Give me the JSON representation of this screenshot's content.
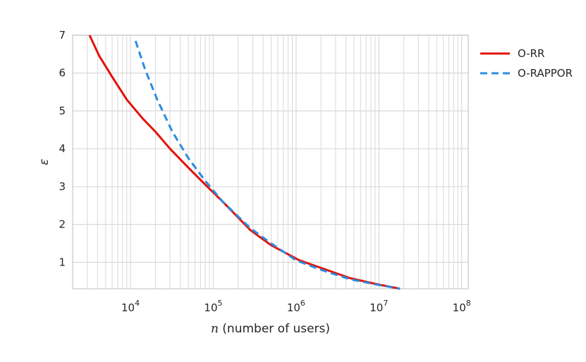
{
  "chart_data": {
    "type": "line",
    "xscale": "log",
    "xlim": [
      2000,
      120000000
    ],
    "ylim": [
      0.3,
      7
    ],
    "x_ticks": [
      10000,
      100000,
      1000000,
      10000000,
      100000000
    ],
    "x_tick_labels": [
      {
        "base": "10",
        "exp": "4"
      },
      {
        "base": "10",
        "exp": "5"
      },
      {
        "base": "10",
        "exp": "6"
      },
      {
        "base": "10",
        "exp": "7"
      },
      {
        "base": "10",
        "exp": "8"
      }
    ],
    "y_ticks": [
      1,
      2,
      3,
      4,
      5,
      6,
      7
    ],
    "y_tick_labels": [
      "1",
      "2",
      "3",
      "4",
      "5",
      "6",
      "7"
    ],
    "xlabel_var": "n",
    "xlabel_text": " (number of users)",
    "ylabel": "ε",
    "grid": true,
    "legend_position": "outside-right-top",
    "series": [
      {
        "name": "O-RR",
        "color": "#e3120b",
        "dash": "solid",
        "x": [
          3200,
          4200,
          6000,
          9000,
          14000,
          20000,
          30000,
          50000,
          80000,
          130000,
          280000,
          500000,
          1100000,
          2000000,
          4500000,
          9000000,
          18000000
        ],
        "y": [
          7.0,
          6.45,
          5.9,
          5.3,
          4.8,
          4.45,
          4.0,
          3.5,
          3.05,
          2.6,
          1.85,
          1.45,
          1.05,
          0.85,
          0.58,
          0.43,
          0.3
        ]
      },
      {
        "name": "O-RAPPOR",
        "color": "#2b8ce0",
        "dash": "dashed",
        "x": [
          11500,
          15000,
          21000,
          32000,
          50000,
          80000,
          130000,
          280000,
          500000,
          1000000,
          2000000,
          4500000,
          9000000,
          18000000
        ],
        "y": [
          6.85,
          6.1,
          5.3,
          4.45,
          3.75,
          3.15,
          2.6,
          1.9,
          1.5,
          1.05,
          0.8,
          0.55,
          0.42,
          0.3
        ]
      }
    ]
  }
}
